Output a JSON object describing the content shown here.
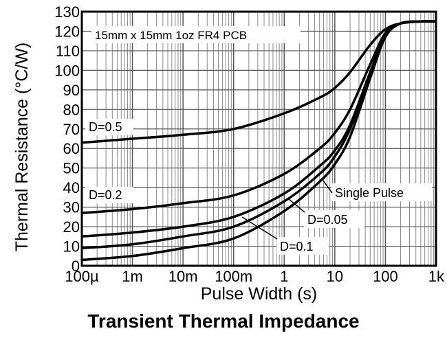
{
  "chart_data": {
    "type": "line",
    "title": "Transient Thermal Impedance",
    "xlabel": "Pulse Width (s)",
    "ylabel": "Thermal Resistance (°C/W)",
    "x_scale": "log",
    "xlim": [
      0.0001,
      1000
    ],
    "ylim": [
      0,
      130
    ],
    "grid": true,
    "x_ticks": [
      {
        "value": 0.0001,
        "label": "100µ"
      },
      {
        "value": 0.001,
        "label": "1m"
      },
      {
        "value": 0.01,
        "label": "10m"
      },
      {
        "value": 0.1,
        "label": "100m"
      },
      {
        "value": 1,
        "label": "1"
      },
      {
        "value": 10,
        "label": "10"
      },
      {
        "value": 100,
        "label": "100"
      },
      {
        "value": 1000,
        "label": "1k"
      }
    ],
    "y_ticks": [
      0,
      10,
      20,
      30,
      40,
      50,
      60,
      70,
      80,
      90,
      100,
      110,
      120,
      130
    ],
    "note": "15mm x 15mm 1oz FR4 PCB",
    "series": [
      {
        "name": "D=0.5",
        "x": [
          0.0001,
          0.001,
          0.01,
          0.1,
          1,
          5,
          10,
          20,
          50,
          100,
          200,
          500,
          1000
        ],
        "y": [
          63,
          65,
          67,
          70,
          78,
          86,
          91,
          99,
          113,
          121,
          124,
          125,
          125
        ]
      },
      {
        "name": "D=0.2",
        "x": [
          0.0001,
          0.001,
          0.01,
          0.1,
          1,
          5,
          10,
          20,
          50,
          100,
          200,
          500,
          1000
        ],
        "y": [
          27,
          29,
          32,
          36,
          47,
          60,
          68,
          80,
          103,
          119,
          124,
          125,
          125
        ]
      },
      {
        "name": "D=0.1",
        "x": [
          0.0001,
          0.001,
          0.01,
          0.1,
          1,
          5,
          10,
          20,
          50,
          100,
          200,
          500,
          1000
        ],
        "y": [
          15,
          17,
          20,
          25,
          37,
          51,
          59,
          72,
          99,
          118,
          124,
          125,
          125
        ]
      },
      {
        "name": "D=0.05",
        "x": [
          0.0001,
          0.001,
          0.01,
          0.1,
          1,
          5,
          10,
          20,
          50,
          100,
          200,
          500,
          1000
        ],
        "y": [
          9,
          11,
          15,
          20,
          33,
          47,
          56,
          70,
          98,
          118,
          124,
          125,
          125
        ]
      },
      {
        "name": "Single Pulse",
        "x": [
          0.0001,
          0.001,
          0.01,
          0.1,
          1,
          5,
          10,
          20,
          50,
          100,
          200,
          500,
          1000
        ],
        "y": [
          3,
          5,
          9,
          14,
          28,
          43,
          52,
          66,
          96,
          117,
          124,
          125,
          125
        ]
      }
    ]
  }
}
